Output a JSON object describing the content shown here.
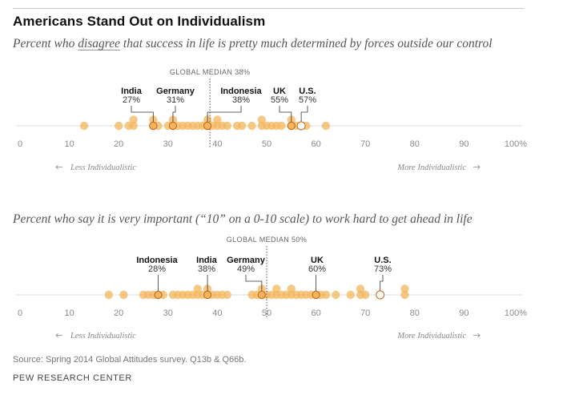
{
  "title": "Americans Stand Out on Individualism",
  "source": "Source: Spring 2014 Global Attitudes survey. Q13b & Q66b.",
  "organization": "PEW RESEARCH CENTER",
  "colors": {
    "dot": "#f3b55c",
    "line": "#dddddd",
    "highlight_edge": "#c06a1a",
    "us_fill": "#ffffff"
  },
  "chart_data": [
    {
      "type": "scatter",
      "subtitle_before": "Percent who ",
      "subtitle_emph": "disagree",
      "subtitle_after": " that success in life is pretty much determined by forces outside our control",
      "xlim": [
        0,
        100
      ],
      "ticks": [
        "0",
        "10",
        "20",
        "30",
        "40",
        "50",
        "60",
        "70",
        "80",
        "90",
        "100%"
      ],
      "median_label": "GLOBAL MEDIAN 38%",
      "median": 38.5,
      "left_label": "Less Individualistic",
      "right_label": "More Individualistic",
      "values": [
        13,
        20,
        22,
        23,
        23,
        27,
        27,
        28,
        30,
        31,
        31,
        32,
        33,
        34,
        35,
        36,
        37,
        38,
        38,
        39,
        40,
        40,
        41,
        42,
        44,
        45,
        47,
        49,
        49,
        50,
        51,
        52,
        53,
        55,
        55,
        56,
        57,
        58,
        62
      ],
      "highlights": [
        {
          "name": "India",
          "label": "27%",
          "value": 27
        },
        {
          "name": "Germany",
          "label": "31%",
          "value": 31
        },
        {
          "name": "Indonesia",
          "label": "38%",
          "value": 38
        },
        {
          "name": "UK",
          "label": "55%",
          "value": 55
        },
        {
          "name": "U.S.",
          "label": "57%",
          "value": 57
        }
      ]
    },
    {
      "type": "scatter",
      "subtitle_before": "Percent who say it is very important (“10” on a 0-10 scale) to work hard to get ahead in life",
      "subtitle_emph": "",
      "subtitle_after": "",
      "xlim": [
        0,
        100
      ],
      "ticks": [
        "0",
        "10",
        "20",
        "30",
        "40",
        "50",
        "60",
        "70",
        "80",
        "90",
        "100%"
      ],
      "median_label": "GLOBAL MEDIAN 50%",
      "median": 50,
      "left_label": "Less Individualistic",
      "right_label": "More Individualistic",
      "values": [
        18,
        21,
        25,
        26,
        27,
        28,
        29,
        31,
        32,
        33,
        34,
        35,
        36,
        36,
        37,
        38,
        38,
        39,
        40,
        41,
        42,
        47,
        48,
        49,
        49,
        50,
        51,
        52,
        52,
        53,
        54,
        55,
        55,
        56,
        57,
        58,
        59,
        60,
        61,
        62,
        64,
        67,
        69,
        69,
        70,
        73,
        78,
        78
      ],
      "highlights": [
        {
          "name": "Indonesia",
          "label": "28%",
          "value": 28
        },
        {
          "name": "India",
          "label": "38%",
          "value": 38
        },
        {
          "name": "Germany",
          "label": "49%",
          "value": 49
        },
        {
          "name": "UK",
          "label": "60%",
          "value": 60
        },
        {
          "name": "U.S.",
          "label": "73%",
          "value": 73
        }
      ]
    }
  ]
}
